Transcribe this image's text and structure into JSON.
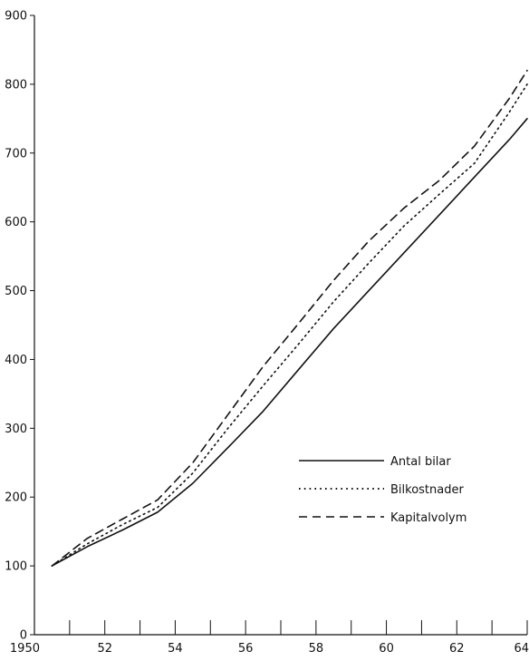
{
  "chart_data": {
    "type": "line",
    "title": "",
    "xlabel": "",
    "ylabel": "",
    "xlim": [
      1950,
      1964
    ],
    "ylim": [
      0,
      900
    ],
    "x_ticks": [
      1950,
      1951,
      1952,
      1953,
      1954,
      1955,
      1956,
      1957,
      1958,
      1959,
      1960,
      1961,
      1962,
      1963,
      1964
    ],
    "x_tick_labels": [
      {
        "x": 1950,
        "label": "1950"
      },
      {
        "x": 1952,
        "label": "52"
      },
      {
        "x": 1954,
        "label": "54"
      },
      {
        "x": 1956,
        "label": "56"
      },
      {
        "x": 1958,
        "label": "58"
      },
      {
        "x": 1960,
        "label": "60"
      },
      {
        "x": 1962,
        "label": "62"
      },
      {
        "x": 1964,
        "label": "64"
      }
    ],
    "y_ticks": [
      0,
      100,
      200,
      300,
      400,
      500,
      600,
      700,
      800,
      900
    ],
    "y_tick_labels": [
      "0",
      "100",
      "200",
      "300",
      "400",
      "500",
      "600",
      "700",
      "800",
      "900"
    ],
    "grid": false,
    "legend_position": "lower-right",
    "series": [
      {
        "name": "Antal bilar",
        "style": "solid",
        "color": "#111111",
        "x": [
          1950.5,
          1951.5,
          1952.5,
          1953.5,
          1954.5,
          1955.5,
          1956.5,
          1957.5,
          1958.5,
          1959.5,
          1960.5,
          1961.5,
          1962.5,
          1963.5,
          1964
        ],
        "values": [
          100,
          128,
          152,
          178,
          220,
          272,
          325,
          385,
          445,
          500,
          555,
          610,
          665,
          720,
          750
        ]
      },
      {
        "name": "Bilkostnader",
        "style": "dotted",
        "color": "#111111",
        "x": [
          1950.5,
          1951.5,
          1952.5,
          1953.5,
          1954.5,
          1955.5,
          1956.5,
          1957.5,
          1958.5,
          1959.5,
          1960.5,
          1961.5,
          1962.5,
          1963.5,
          1964
        ],
        "values": [
          100,
          132,
          160,
          185,
          235,
          300,
          362,
          422,
          484,
          540,
          594,
          640,
          685,
          760,
          800
        ]
      },
      {
        "name": "Kapitalvolym",
        "style": "dashed",
        "color": "#111111",
        "x": [
          1950.5,
          1951.5,
          1952.5,
          1953.5,
          1954.5,
          1955.5,
          1956.5,
          1957.5,
          1958.5,
          1959.5,
          1960.5,
          1961.5,
          1962.5,
          1963.5,
          1964
        ],
        "values": [
          100,
          140,
          168,
          196,
          250,
          320,
          390,
          452,
          515,
          572,
          620,
          660,
          710,
          780,
          820
        ]
      }
    ]
  }
}
